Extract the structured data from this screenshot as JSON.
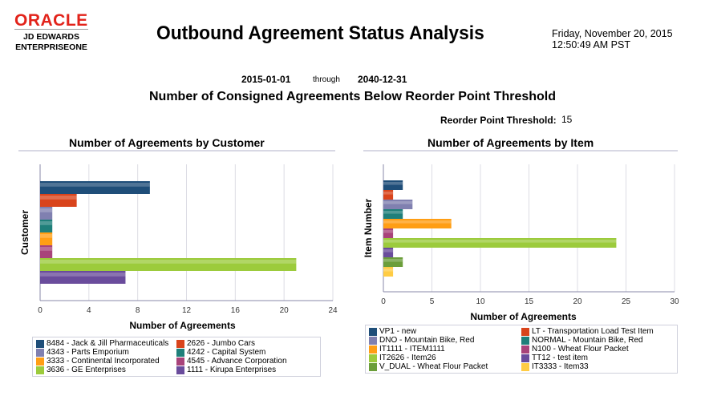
{
  "header": {
    "logo_oracle": "ORACLE",
    "logo_line1": "JD EDWARDS",
    "logo_line2": "ENTERPRISEONE",
    "title": "Outbound Agreement Status Analysis",
    "date": "Friday, November 20, 2015",
    "time": "12:50:49 AM PST"
  },
  "range": {
    "from": "2015-01-01",
    "through": "through",
    "to": "2040-12-31"
  },
  "subtitle": "Number of Consigned Agreements Below Reorder Point Threshold",
  "threshold": {
    "label": "Reorder Point Threshold:",
    "value": "15"
  },
  "chart_data": [
    {
      "type": "bar",
      "orientation": "horizontal",
      "title": "Number of Agreements by Customer",
      "xlabel": "Number of Agreements",
      "ylabel": "Customer",
      "xlim": [
        0,
        24
      ],
      "xticks": [
        0,
        4,
        8,
        12,
        16,
        20,
        24
      ],
      "grid": true,
      "legend": "bottom",
      "series": [
        {
          "name": "8484 - Jack & Jill Pharmaceuticals",
          "value": 9,
          "color": "#1f4e79"
        },
        {
          "name": "2626 - Jumbo Cars",
          "value": 3,
          "color": "#d9441c"
        },
        {
          "name": "4343 - Parts Emporium",
          "value": 1,
          "color": "#8080b0"
        },
        {
          "name": "4242 - Capital System",
          "value": 1,
          "color": "#1f7f7a"
        },
        {
          "name": "3333 - Continental Incorporated",
          "value": 1,
          "color": "#ff9e14"
        },
        {
          "name": "4545 - Advance Corporation",
          "value": 1,
          "color": "#a8437a"
        },
        {
          "name": "3636 - GE Enterprises",
          "value": 21,
          "color": "#9ccb3c"
        },
        {
          "name": "1111 - Kirupa Enterprises",
          "value": 7,
          "color": "#6a4c9c"
        }
      ]
    },
    {
      "type": "bar",
      "orientation": "horizontal",
      "title": "Number of Agreements by Item",
      "xlabel": "Number of Agreements",
      "ylabel": "Item Number",
      "xlim": [
        0,
        30
      ],
      "xticks": [
        0,
        5,
        10,
        15,
        20,
        25,
        30
      ],
      "grid": true,
      "legend": "bottom",
      "series": [
        {
          "name": "VP1 - new",
          "value": 2,
          "color": "#1f4e79"
        },
        {
          "name": "LT - Transportation Load Test Item",
          "value": 1,
          "color": "#d9441c"
        },
        {
          "name": "DNO - Mountain Bike, Red",
          "value": 3,
          "color": "#8080b0"
        },
        {
          "name": "NORMAL - Mountain Bike, Red",
          "value": 2,
          "color": "#1f7f7a"
        },
        {
          "name": "IT1111 - ITEM1111",
          "value": 7,
          "color": "#ff9e14"
        },
        {
          "name": "N100 - Wheat Flour Packet",
          "value": 1,
          "color": "#a8437a"
        },
        {
          "name": "IT2626 - Item26",
          "value": 24,
          "color": "#9ccb3c"
        },
        {
          "name": "TT12 - test item",
          "value": 1,
          "color": "#6a4c9c"
        },
        {
          "name": "V_DUAL - Wheat Flour Packet",
          "value": 2,
          "color": "#6b9e3a"
        },
        {
          "name": "IT3333 - Item33",
          "value": 1,
          "color": "#ffcc44"
        }
      ]
    }
  ]
}
